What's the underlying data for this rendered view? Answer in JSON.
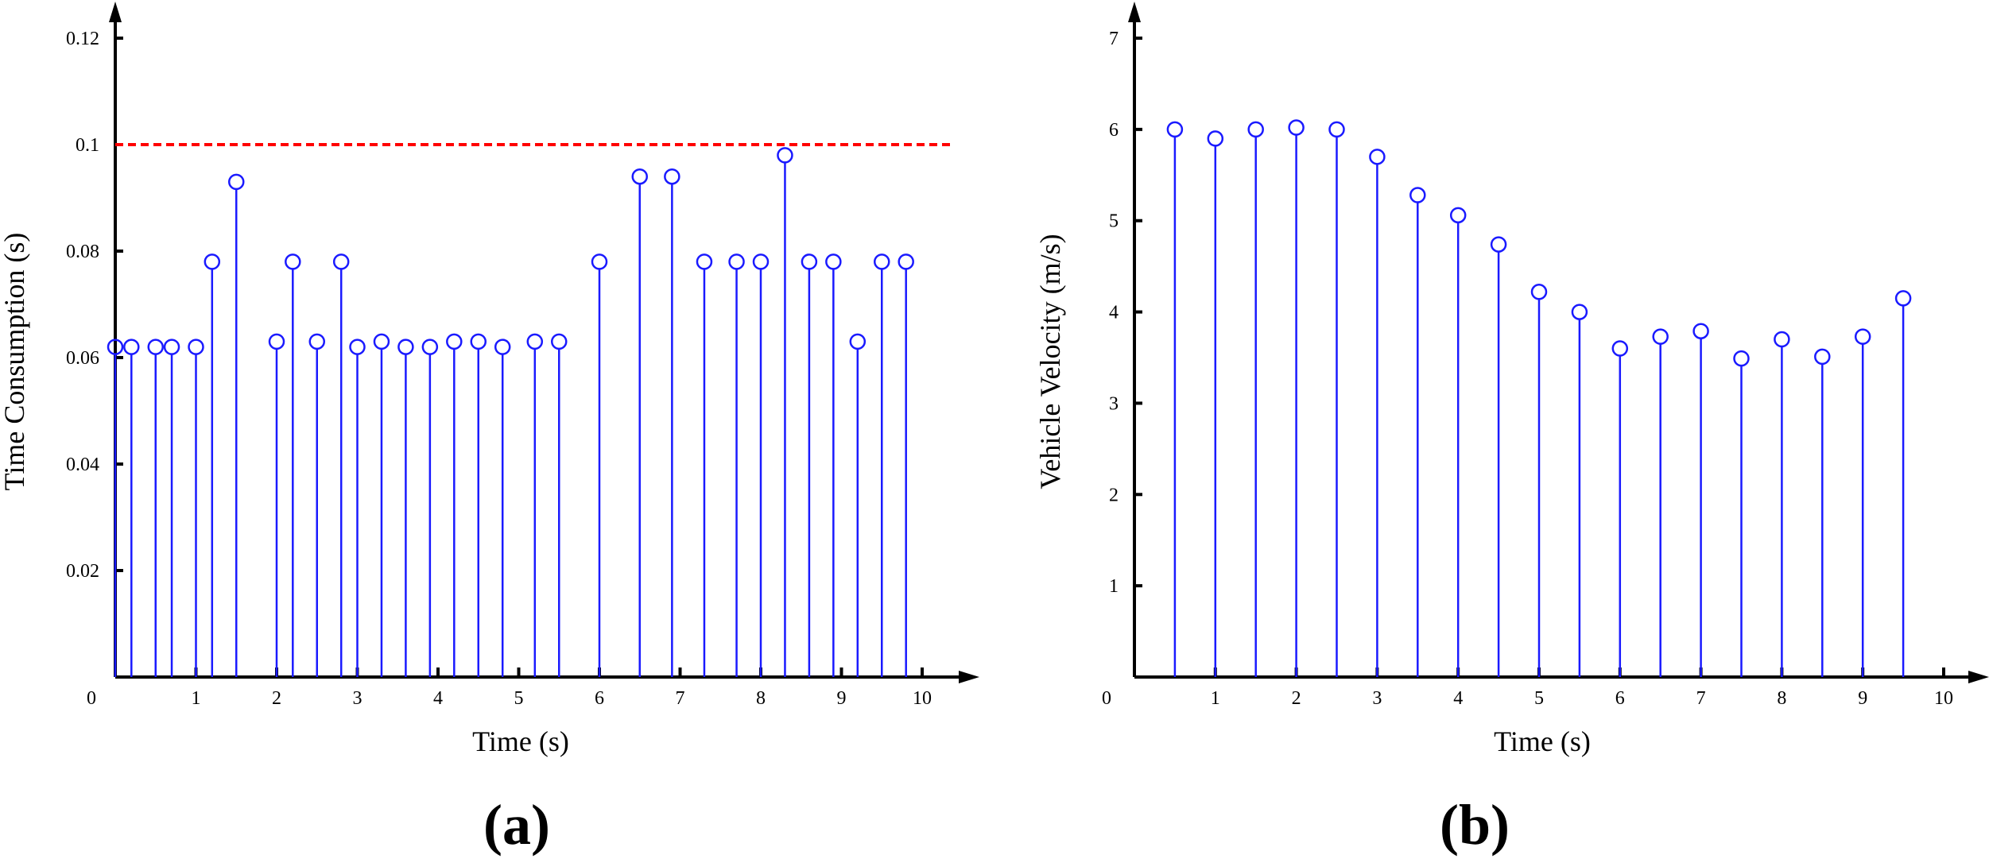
{
  "chart_data": [
    {
      "type": "stem",
      "panel_label": "(a)",
      "xlabel": "Time (s)",
      "ylabel": "Time Consumption (s)",
      "xlim": [
        0,
        10
      ],
      "ylim": [
        0,
        0.12
      ],
      "xticks": [
        "1",
        "2",
        "3",
        "4",
        "5",
        "6",
        "7",
        "8",
        "9",
        "10"
      ],
      "yticks": [
        "0.02",
        "0.04",
        "0.06",
        "0.08",
        "0.1",
        "0.12"
      ],
      "origin_label": "0",
      "stem_color": "#1a1aff",
      "threshold": {
        "value": 0.1,
        "color": "#ff0000",
        "style": "dashed"
      },
      "x": [
        0.0,
        0.2,
        0.5,
        0.7,
        1.0,
        1.2,
        1.5,
        2.0,
        2.2,
        2.5,
        2.8,
        3.0,
        3.3,
        3.6,
        3.9,
        4.2,
        4.5,
        4.8,
        5.2,
        5.5,
        6.0,
        6.5,
        6.9,
        7.3,
        7.7,
        8.0,
        8.3,
        8.6,
        8.9,
        9.2,
        9.5,
        9.8
      ],
      "y": [
        0.062,
        0.062,
        0.062,
        0.062,
        0.062,
        0.078,
        0.093,
        0.063,
        0.078,
        0.063,
        0.078,
        0.062,
        0.063,
        0.062,
        0.062,
        0.063,
        0.063,
        0.062,
        0.063,
        0.063,
        0.078,
        0.094,
        0.094,
        0.078,
        0.078,
        0.078,
        0.098,
        0.078,
        0.078,
        0.063,
        0.078,
        0.078
      ]
    },
    {
      "type": "stem",
      "panel_label": "(b)",
      "xlabel": "Time (s)",
      "ylabel": "Vehicle Velocity  (m/s)",
      "xlim": [
        0,
        10
      ],
      "ylim": [
        0,
        7
      ],
      "xticks": [
        "1",
        "2",
        "3",
        "4",
        "5",
        "6",
        "7",
        "8",
        "9",
        "10"
      ],
      "yticks": [
        "1",
        "2",
        "3",
        "4",
        "5",
        "6",
        "7"
      ],
      "origin_label": "0",
      "stem_color": "#1a1aff",
      "x": [
        0.5,
        1.0,
        1.5,
        2.0,
        2.5,
        3.0,
        3.5,
        4.0,
        4.5,
        5.0,
        5.5,
        6.0,
        6.5,
        7.0,
        7.5,
        8.0,
        8.5,
        9.0,
        9.5
      ],
      "y": [
        6.0,
        5.9,
        6.0,
        6.02,
        6.0,
        5.7,
        5.28,
        5.06,
        4.74,
        4.22,
        4.0,
        3.6,
        3.73,
        3.79,
        3.49,
        3.7,
        3.51,
        3.73,
        4.15
      ]
    }
  ]
}
